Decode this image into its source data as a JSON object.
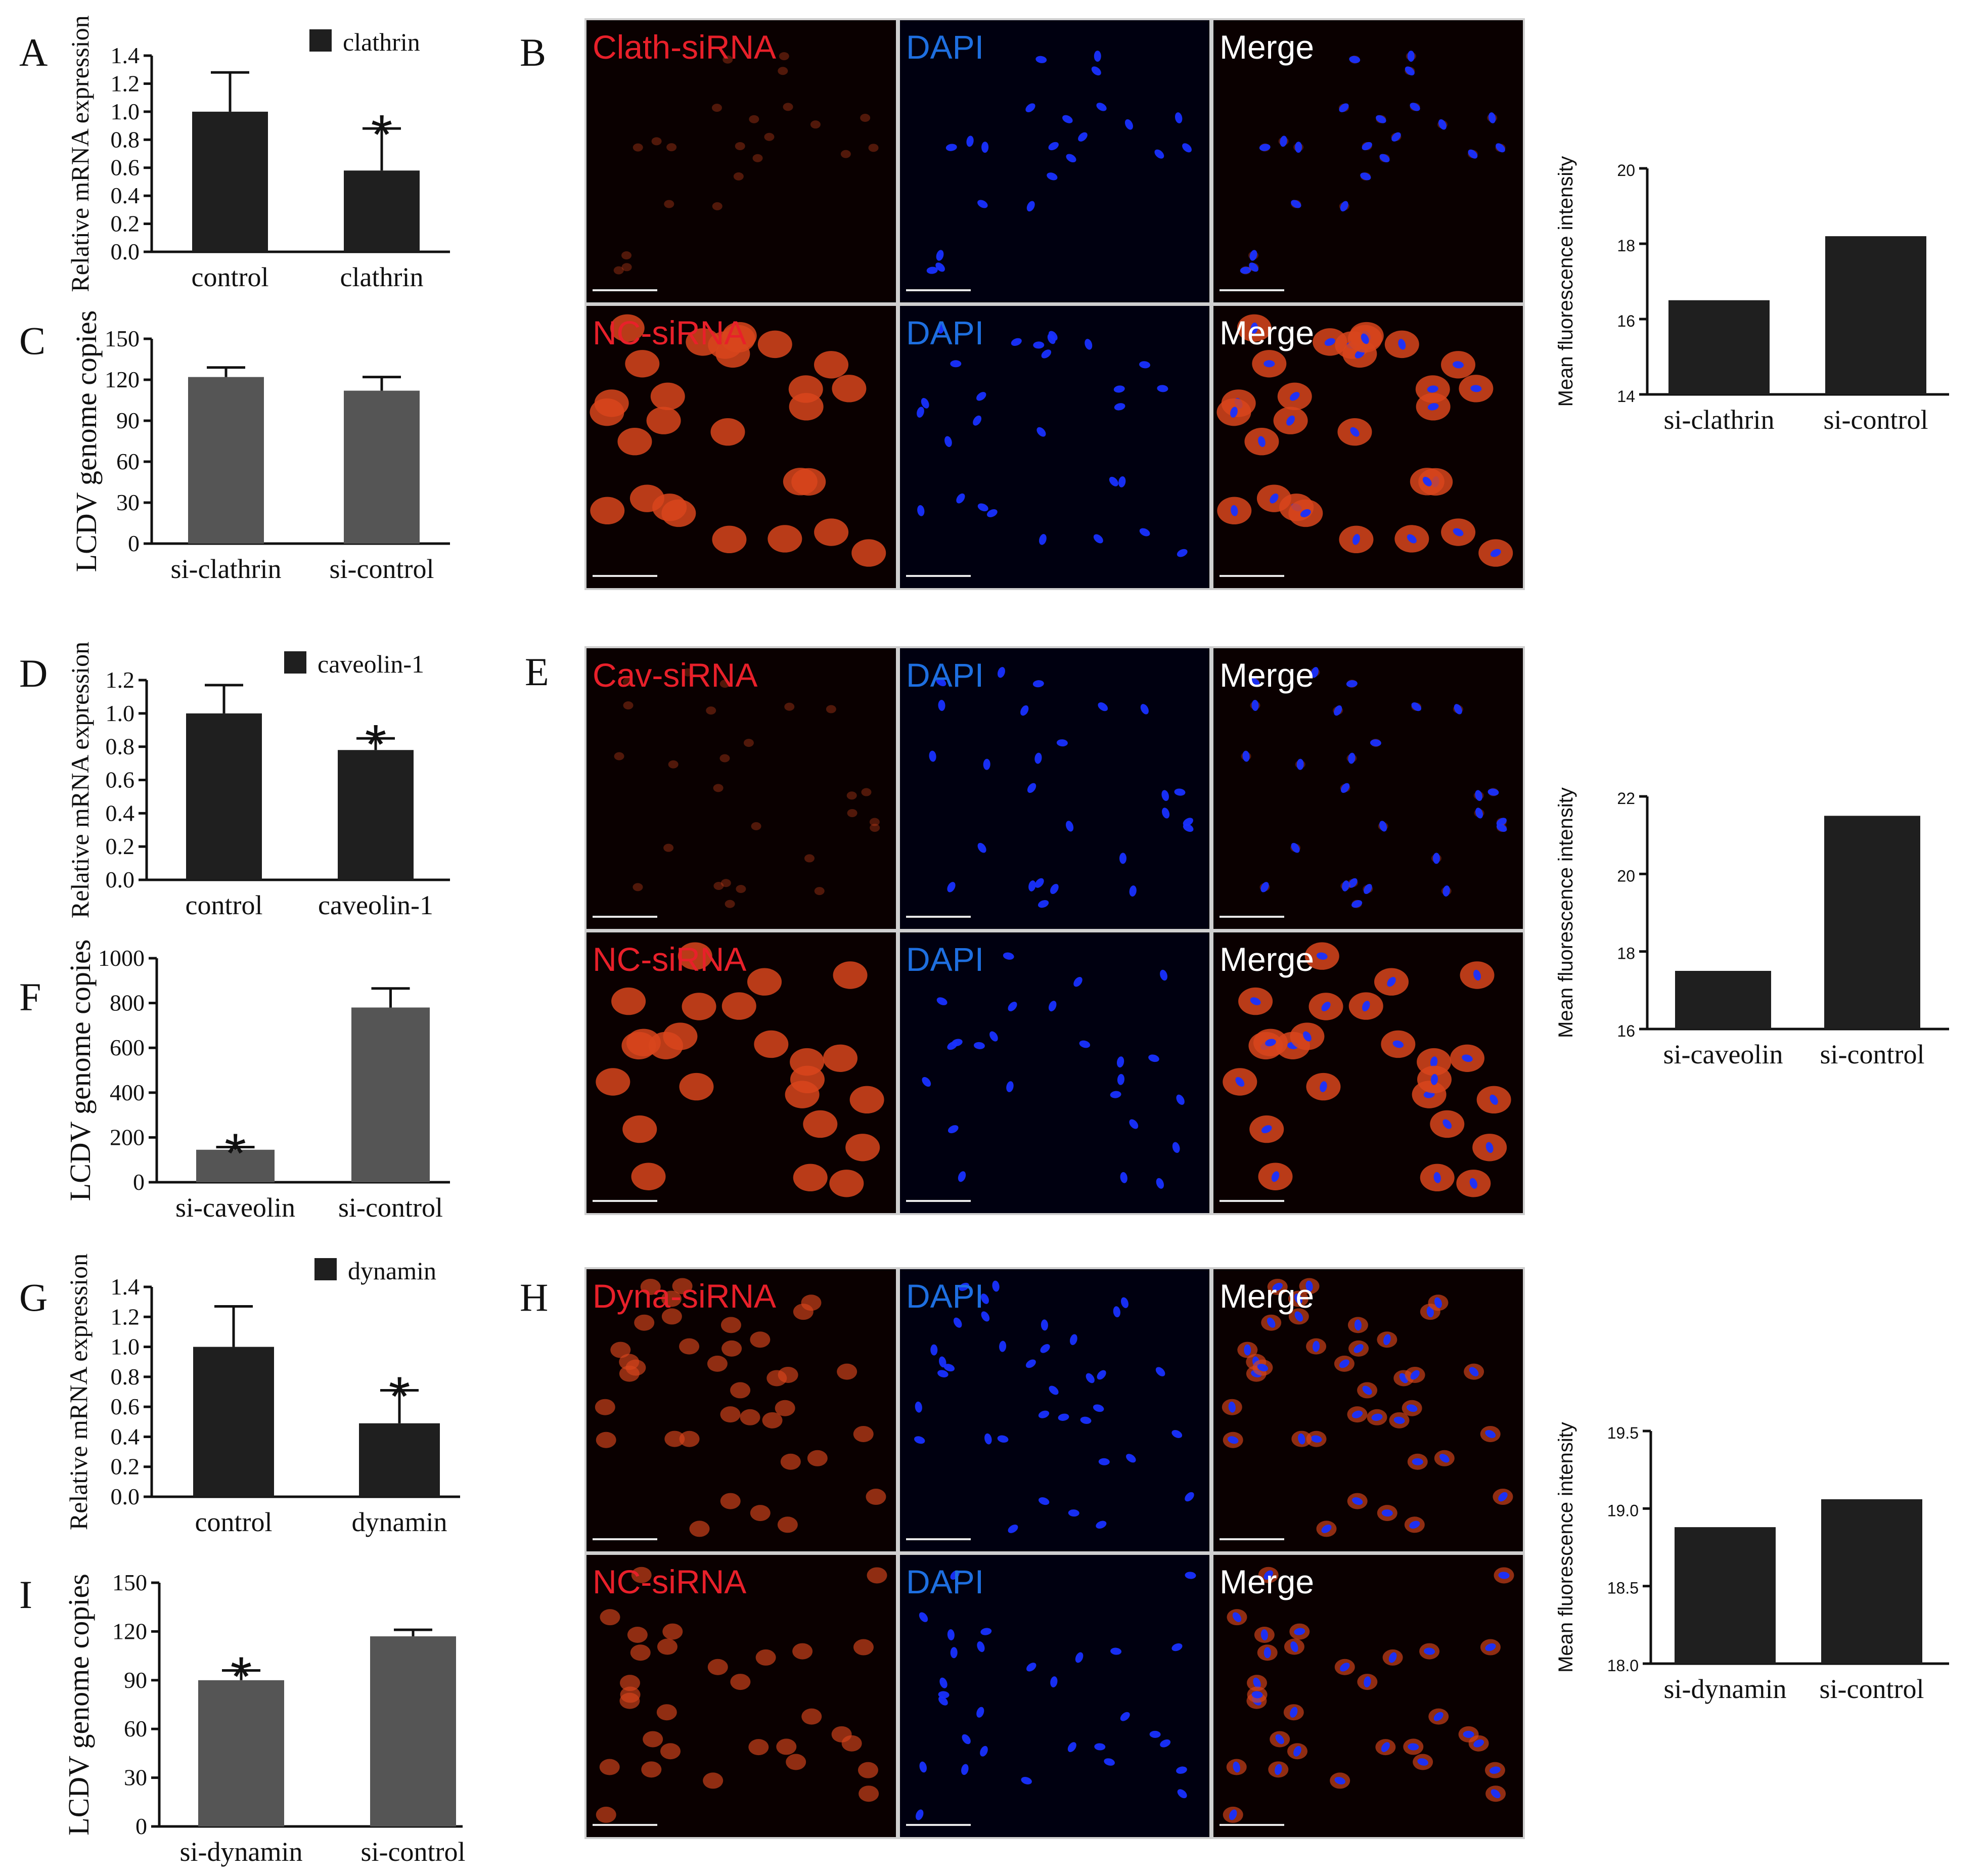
{
  "figure": {
    "panel_letters": [
      "A",
      "B",
      "C",
      "D",
      "E",
      "F",
      "G",
      "H",
      "I"
    ]
  },
  "chart_data": [
    {
      "id": "A",
      "type": "bar",
      "ylabel": "Relative mRNA expression",
      "legend": "clathrin",
      "categories": [
        "control",
        "clathrin"
      ],
      "values": [
        1.0,
        0.58
      ],
      "errors": [
        0.28,
        0.3
      ],
      "significant": [
        false,
        true
      ],
      "ylim": [
        0,
        1.4
      ],
      "yticks": [
        "0.0",
        "0.2",
        "0.4",
        "0.6",
        "0.8",
        "1.0",
        "1.2",
        "1.4"
      ],
      "bar_color": "#1f1f1f"
    },
    {
      "id": "C",
      "type": "bar",
      "ylabel": "LCDV genome copies",
      "categories": [
        "si-clathrin",
        "si-control"
      ],
      "values": [
        122,
        112
      ],
      "errors": [
        7,
        10
      ],
      "significant": [
        false,
        false
      ],
      "ylim": [
        0,
        150
      ],
      "yticks": [
        "0",
        "30",
        "60",
        "90",
        "120",
        "150"
      ],
      "bar_color": "#555555"
    },
    {
      "id": "B-quant",
      "type": "bar",
      "ylabel": "Mean fluorescence intensity",
      "categories": [
        "si-clathrin",
        "si-control"
      ],
      "values": [
        16.5,
        18.2
      ],
      "ylim": [
        14,
        20
      ],
      "yticks": [
        "14",
        "16",
        "18",
        "20"
      ],
      "bar_color": "#1f1f1f"
    },
    {
      "id": "D",
      "type": "bar",
      "ylabel": "Relative mRNA expression",
      "legend": "caveolin-1",
      "categories": [
        "control",
        "caveolin-1"
      ],
      "values": [
        1.0,
        0.78
      ],
      "errors": [
        0.17,
        0.07
      ],
      "significant": [
        false,
        true
      ],
      "ylim": [
        0,
        1.2
      ],
      "yticks": [
        "0.0",
        "0.2",
        "0.4",
        "0.6",
        "0.8",
        "1.0",
        "1.2"
      ],
      "bar_color": "#1f1f1f"
    },
    {
      "id": "F",
      "type": "bar",
      "ylabel": "LCDV genome copies",
      "categories": [
        "si-caveolin",
        "si-control"
      ],
      "values": [
        145,
        780
      ],
      "errors": [
        12,
        85
      ],
      "significant": [
        true,
        false
      ],
      "ylim": [
        0,
        1000
      ],
      "yticks": [
        "0",
        "200",
        "400",
        "600",
        "800",
        "1000"
      ],
      "bar_color": "#555555"
    },
    {
      "id": "E-quant",
      "type": "bar",
      "ylabel": "Mean fluorescence intensity",
      "categories": [
        "si-caveolin",
        "si-control"
      ],
      "values": [
        17.5,
        21.5
      ],
      "ylim": [
        16,
        22
      ],
      "yticks": [
        "16",
        "18",
        "20",
        "22"
      ],
      "bar_color": "#1f1f1f"
    },
    {
      "id": "G",
      "type": "bar",
      "ylabel": "Relative mRNA expression",
      "legend": "dynamin",
      "categories": [
        "control",
        "dynamin"
      ],
      "values": [
        1.0,
        0.49
      ],
      "errors": [
        0.27,
        0.22
      ],
      "significant": [
        false,
        true
      ],
      "ylim": [
        0,
        1.4
      ],
      "yticks": [
        "0.0",
        "0.2",
        "0.4",
        "0.6",
        "0.8",
        "1.0",
        "1.2",
        "1.4"
      ],
      "bar_color": "#1f1f1f"
    },
    {
      "id": "I",
      "type": "bar",
      "ylabel": "LCDV genome copies",
      "categories": [
        "si-dynamin",
        "si-control"
      ],
      "values": [
        90,
        117
      ],
      "errors": [
        6,
        4
      ],
      "significant": [
        true,
        false
      ],
      "ylim": [
        0,
        150
      ],
      "yticks": [
        "0",
        "30",
        "60",
        "90",
        "120",
        "150"
      ],
      "bar_color": "#555555"
    },
    {
      "id": "H-quant",
      "type": "bar",
      "ylabel": "Mean fluorescence intensity",
      "categories": [
        "si-dynamin",
        "si-control"
      ],
      "values": [
        18.88,
        19.06
      ],
      "ylim": [
        18.0,
        19.5
      ],
      "yticks": [
        "18.0",
        "18.5",
        "19.0",
        "19.5"
      ],
      "bar_color": "#1f1f1f"
    }
  ],
  "micrographs": [
    {
      "panel": "B",
      "rows": [
        {
          "labels": [
            "Clath-siRNA",
            "DAPI",
            "Merge"
          ],
          "red_signal": "weak",
          "nuclei": 22
        },
        {
          "labels": [
            "NC-siRNA",
            "DAPI",
            "Merge"
          ],
          "red_signal": "strong",
          "nuclei": 28
        }
      ]
    },
    {
      "panel": "E",
      "rows": [
        {
          "labels": [
            "Cav-siRNA",
            "DAPI",
            "Merge"
          ],
          "red_signal": "weak",
          "nuclei": 26
        },
        {
          "labels": [
            "NC-siRNA",
            "DAPI",
            "Merge"
          ],
          "red_signal": "strong",
          "nuclei": 24
        }
      ]
    },
    {
      "panel": "H",
      "rows": [
        {
          "labels": [
            "Dyna-siRNA",
            "DAPI",
            "Merge"
          ],
          "red_signal": "medium",
          "nuclei": 36
        },
        {
          "labels": [
            "NC-siRNA",
            "DAPI",
            "Merge"
          ],
          "red_signal": "medium",
          "nuclei": 30
        }
      ]
    }
  ],
  "colors": {
    "treat_label": "#e8202a",
    "dapi_label": "#1e6fe0",
    "merge_label": "#ffffff",
    "micro_bg": "#0a0000",
    "red_cell": "#d8451c",
    "blue_nucleus": "#1830ff"
  }
}
